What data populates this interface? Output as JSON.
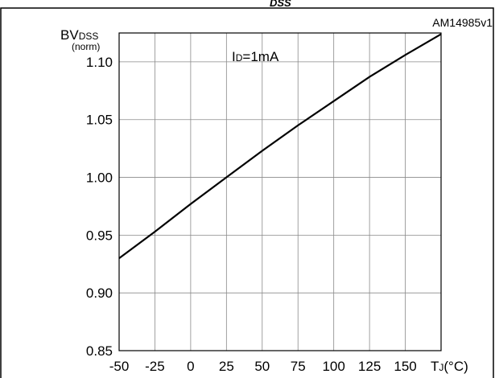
{
  "header": {
    "figure_caption_fragment": "DSS",
    "figure_id": "AM14985v1"
  },
  "chart_data": {
    "type": "line",
    "ylabel_main": "BV",
    "ylabel_sub": "DSS",
    "ylabel_unit": "(norm)",
    "annotation_main": "I",
    "annotation_sub": "D",
    "annotation_rest": "=1mA",
    "xlabel_main": "T",
    "xlabel_sub": "J",
    "xlabel_unit": "(°C)",
    "xlim": [
      -50,
      175
    ],
    "ylim": [
      0.85,
      1.125
    ],
    "x_ticks": [
      -50,
      -25,
      0,
      25,
      50,
      75,
      100,
      125,
      150
    ],
    "x_tick_labels": [
      "-50",
      "-25",
      "0",
      "25",
      "50",
      "75",
      "100",
      "125",
      "150"
    ],
    "y_ticks": [
      0.85,
      0.9,
      0.95,
      1.0,
      1.05,
      1.1
    ],
    "y_tick_labels": [
      "0.85",
      "0.90",
      "0.95",
      "1.00",
      "1.05",
      "1.10"
    ],
    "grid": true,
    "series": [
      {
        "color": "#000000",
        "x": [
          -50,
          -25,
          0,
          25,
          50,
          75,
          100,
          125,
          150,
          175
        ],
        "y": [
          0.93,
          0.953,
          0.977,
          1.0,
          1.023,
          1.045,
          1.066,
          1.087,
          1.106,
          1.124
        ]
      }
    ]
  }
}
